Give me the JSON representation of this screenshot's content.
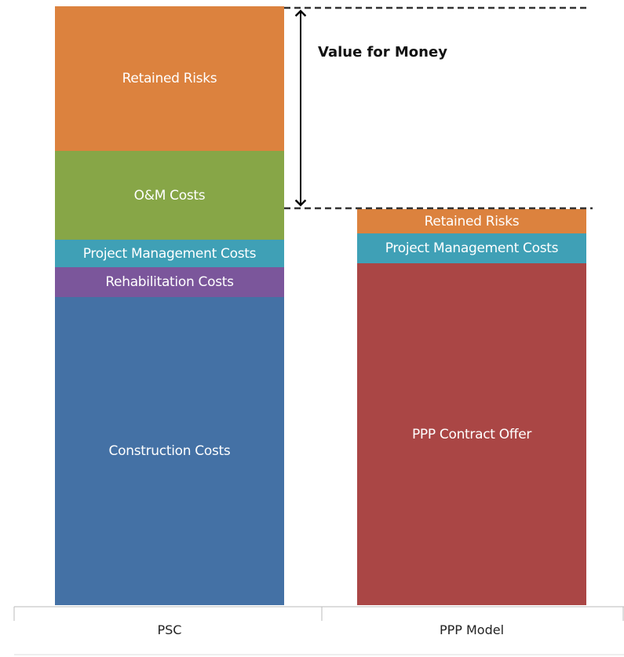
{
  "chart_data": {
    "type": "stacked_bar",
    "categories": [
      "PSC",
      "PPP Model"
    ],
    "series": [
      {
        "name": "Construction Costs",
        "color": "#4471a5",
        "values": [
          392,
          null
        ]
      },
      {
        "name": "PPP Contract Offer",
        "color": "#aa4645",
        "values": [
          null,
          435
        ]
      },
      {
        "name": "Rehabilitation Costs",
        "color": "#7b569b",
        "values": [
          38,
          null
        ]
      },
      {
        "name": "Project Management Costs",
        "color": "#3fa0b6",
        "values": [
          35,
          38
        ]
      },
      {
        "name": "O&M Costs",
        "color": "#87a647",
        "values": [
          113,
          null
        ]
      },
      {
        "name": "Retained Risks",
        "color": "#dc823e",
        "values": [
          184,
          31
        ]
      }
    ],
    "annotation": "Value for Money"
  }
}
